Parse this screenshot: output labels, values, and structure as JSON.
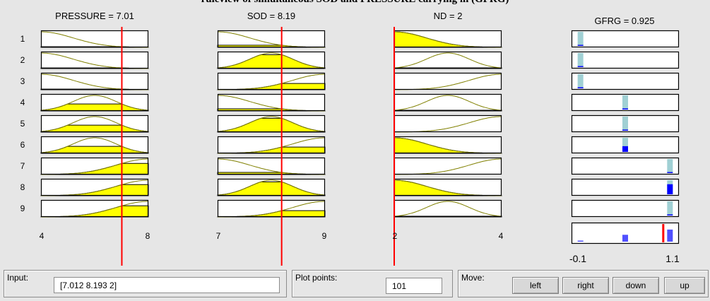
{
  "window_title": "ruleview of simultaneous SOD and PRESSURE carrying in (GFRG)",
  "inputs": [
    {
      "name": "PRESSURE",
      "value_text": "7.01",
      "value": 7.012,
      "range": [
        4,
        8
      ]
    },
    {
      "name": "SOD",
      "value_text": "8.19",
      "value": 8.193,
      "range": [
        7,
        9
      ]
    },
    {
      "name": "ND",
      "value_text": "2",
      "value": 2,
      "range": [
        2,
        4
      ]
    }
  ],
  "output": {
    "name": "GFRG",
    "value_text": "0.925",
    "value": 0.925,
    "range": [
      -0.1,
      1.1
    ],
    "range_labels": [
      "-0.1",
      "1.1"
    ]
  },
  "input_axis_labels": [
    [
      "4",
      "8"
    ],
    [
      "7",
      "9"
    ],
    [
      "2",
      "4"
    ]
  ],
  "rules": [
    {
      "num": "1",
      "mfs": [
        "low",
        "low",
        "low"
      ],
      "out": 0.0
    },
    {
      "num": "2",
      "mfs": [
        "low",
        "med",
        "med"
      ],
      "out": 0.0
    },
    {
      "num": "3",
      "mfs": [
        "low",
        "high",
        "high"
      ],
      "out": 0.0
    },
    {
      "num": "4",
      "mfs": [
        "med",
        "low",
        "med"
      ],
      "out": 0.5
    },
    {
      "num": "5",
      "mfs": [
        "med",
        "med",
        "high"
      ],
      "out": 0.5
    },
    {
      "num": "6",
      "mfs": [
        "med",
        "high",
        "low"
      ],
      "out": 0.5
    },
    {
      "num": "7",
      "mfs": [
        "high",
        "low",
        "high"
      ],
      "out": 1.0
    },
    {
      "num": "8",
      "mfs": [
        "high",
        "med",
        "low"
      ],
      "out": 1.0
    },
    {
      "num": "9",
      "mfs": [
        "high",
        "high",
        "med"
      ],
      "out": 1.0
    }
  ],
  "colors": {
    "fill": "#ffff00",
    "curve": "#808000",
    "line": "#ff0000",
    "output_bar": "#a0d0d4",
    "output_fill": "#0000ff"
  },
  "controls": {
    "input_label": "Input:",
    "input_value": "[7.012 8.193 2]",
    "plot_points_label": "Plot points:",
    "plot_points_value": "101",
    "move_label": "Move:",
    "buttons": [
      "left",
      "right",
      "down",
      "up"
    ]
  }
}
